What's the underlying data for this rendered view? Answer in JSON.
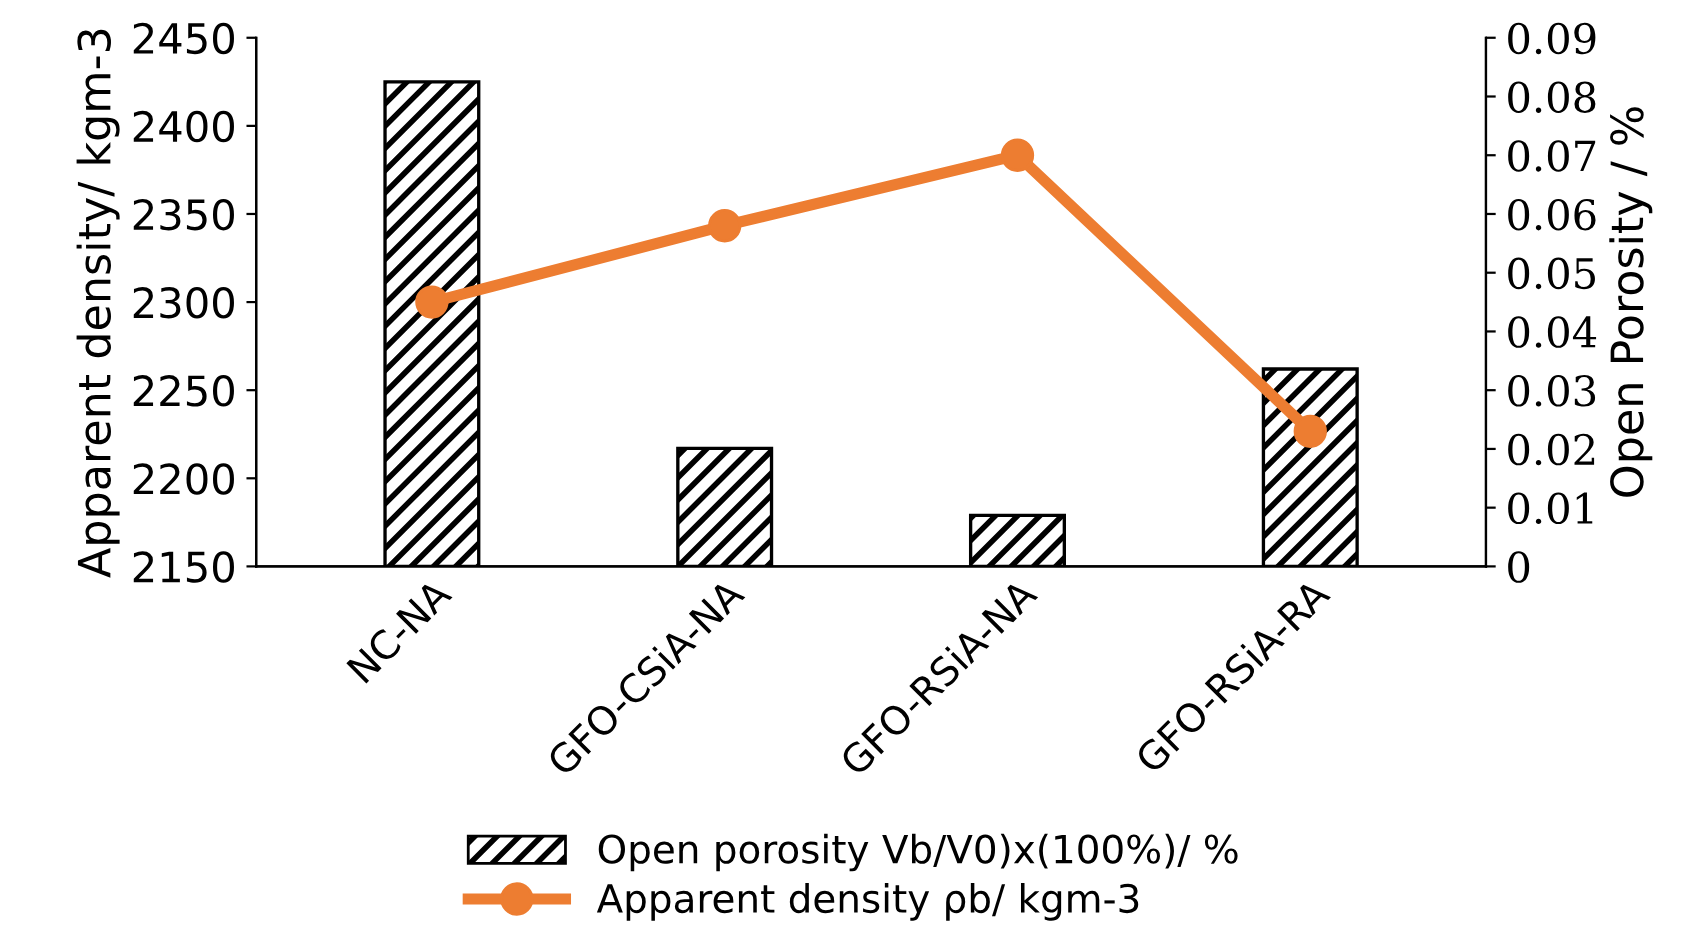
{
  "chart_data": {
    "type": "bar",
    "categories": [
      "NC-NA",
      "GFO-CSiA-NA",
      "GFO-RSiA-NA",
      "GFO-RSiA-RA"
    ],
    "ylabel": "Apparent density/ kgm-3",
    "y2label": "Open Porosity / %",
    "ylim": [
      2150,
      2450
    ],
    "yticks": [
      2150,
      2200,
      2250,
      2300,
      2350,
      2400,
      2450
    ],
    "y2lim": [
      0,
      0.09
    ],
    "y2ticks": [
      0,
      0.01,
      0.02,
      0.03,
      0.04,
      0.05,
      0.06,
      0.07,
      0.08,
      0.09
    ],
    "series": [
      {
        "name": "Open porosity Vb/V0)x(100%)/ %",
        "color": "#000000",
        "values": [
          2425,
          2217,
          2179,
          2262
        ]
      },
      {
        "name": "Apparent density ρb/ kgm-3",
        "type": "line",
        "axis": "y2",
        "color": "#ed7d31",
        "marker": "circle",
        "values": [
          0.045,
          0.058,
          0.07,
          0.023
        ]
      }
    ],
    "legend": "bottom",
    "grid": false
  }
}
